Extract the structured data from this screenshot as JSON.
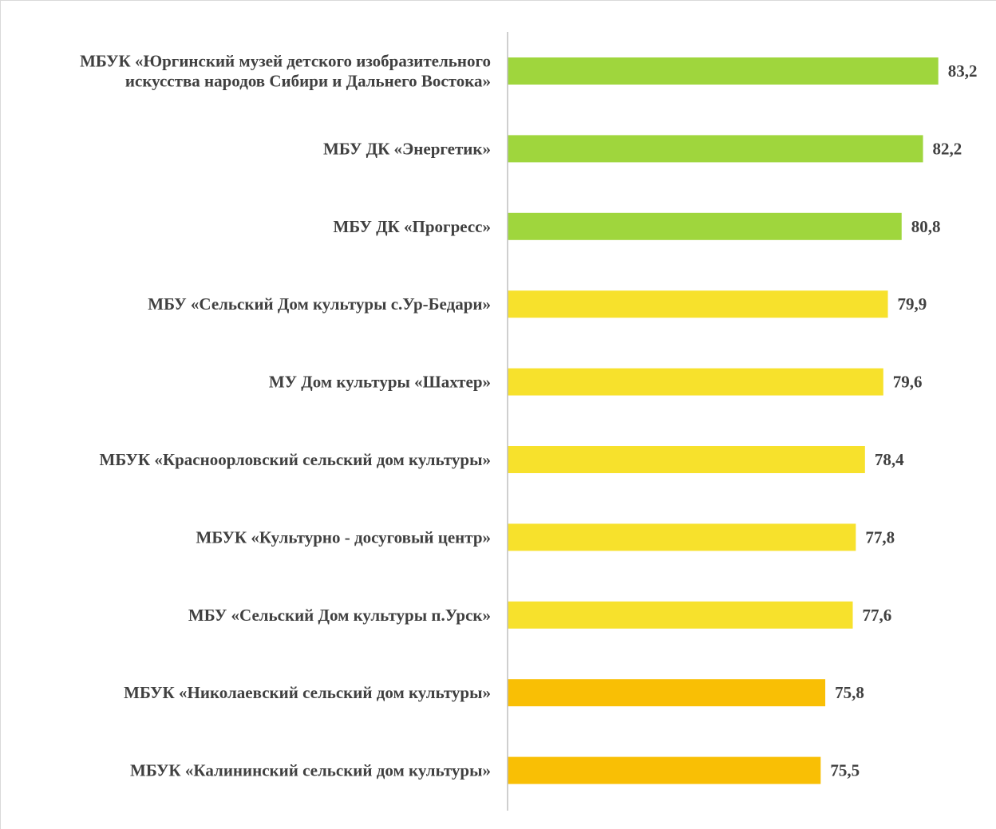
{
  "chart_data": {
    "type": "bar",
    "orientation": "horizontal",
    "title": "",
    "xlabel": "",
    "ylabel": "",
    "grid": false,
    "legend": "none",
    "xlim": [
      55,
      84
    ],
    "categories": [
      [
        "МБУК «Юргинский музей детского изобразительного",
        "искусства народов Сибири и Дальнего Востока»"
      ],
      [
        "МБУ ДК «Энергетик»"
      ],
      [
        "МБУ ДК «Прогресс»"
      ],
      [
        "МБУ «Сельский Дом культуры с.Ур-Бедари»"
      ],
      [
        "МУ Дом культуры «Шахтер»"
      ],
      [
        "МБУК «Красноорловский сельский дом культуры»"
      ],
      [
        "МБУК «Культурно - досуговый центр»"
      ],
      [
        "МБУ «Сельский Дом культуры п.Урск»"
      ],
      [
        "МБУК «Николаевский сельский дом культуры»"
      ],
      [
        "МБУК «Калининский сельский дом культуры»"
      ]
    ],
    "values": [
      83.2,
      82.2,
      80.8,
      79.9,
      79.6,
      78.4,
      77.8,
      77.6,
      75.8,
      75.5
    ],
    "value_labels": [
      "83,2",
      "82,2",
      "80,8",
      "79,9",
      "79,6",
      "78,4",
      "77,8",
      "77,6",
      "75,8",
      "75,5"
    ],
    "bar_colors": [
      "#9fd63d",
      "#9fd63d",
      "#9fd63d",
      "#f7e12c",
      "#f7e12c",
      "#f7e12c",
      "#f7e12c",
      "#f7e12c",
      "#f9bf05",
      "#f9bf05"
    ],
    "axis_color": "#bfbfbf",
    "text_color": "#404040"
  }
}
